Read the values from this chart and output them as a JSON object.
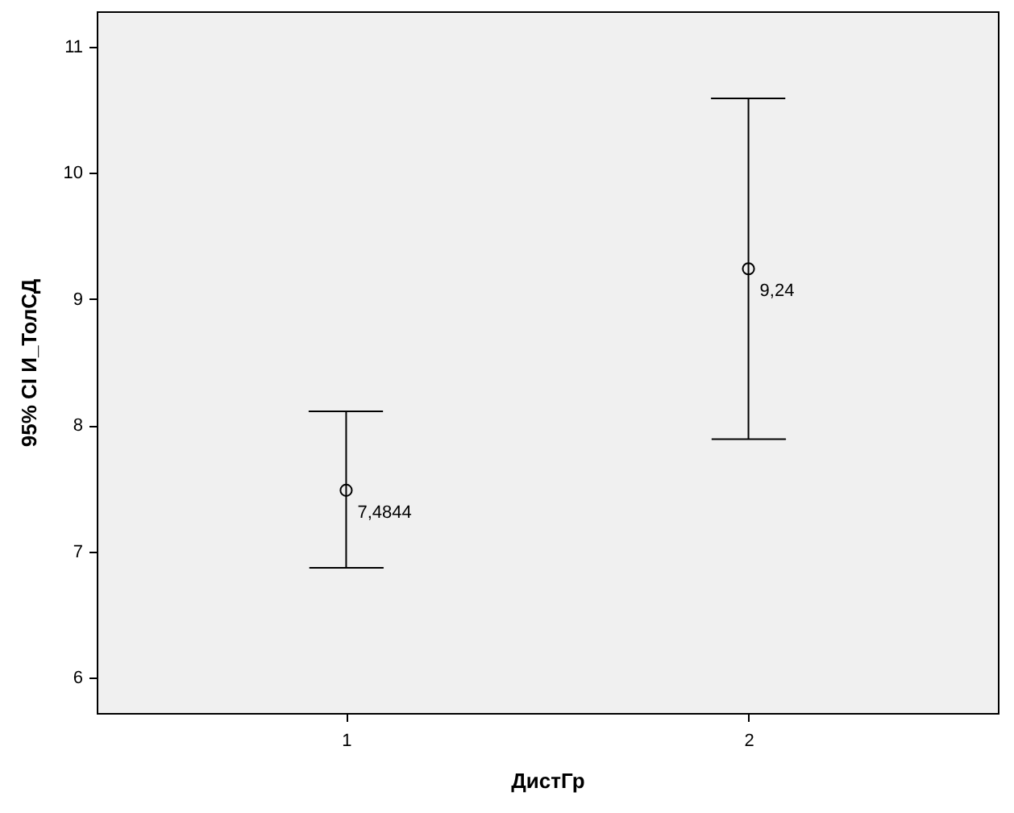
{
  "chart_data": {
    "type": "scatter",
    "xlabel": "ДистГр",
    "ylabel": "95% CI И_ТолСД",
    "categories": [
      "1",
      "2"
    ],
    "values": [
      7.4844,
      9.24
    ],
    "errors": [
      [
        6.87,
        8.11
      ],
      [
        7.89,
        10.59
      ]
    ],
    "value_labels": [
      "7,4844",
      "9,24"
    ],
    "color": "#000000",
    "marker": "circle",
    "ylim": [
      5.72,
      11.28
    ],
    "yticks": [
      6,
      7,
      8,
      9,
      10,
      11
    ],
    "grid": false
  }
}
